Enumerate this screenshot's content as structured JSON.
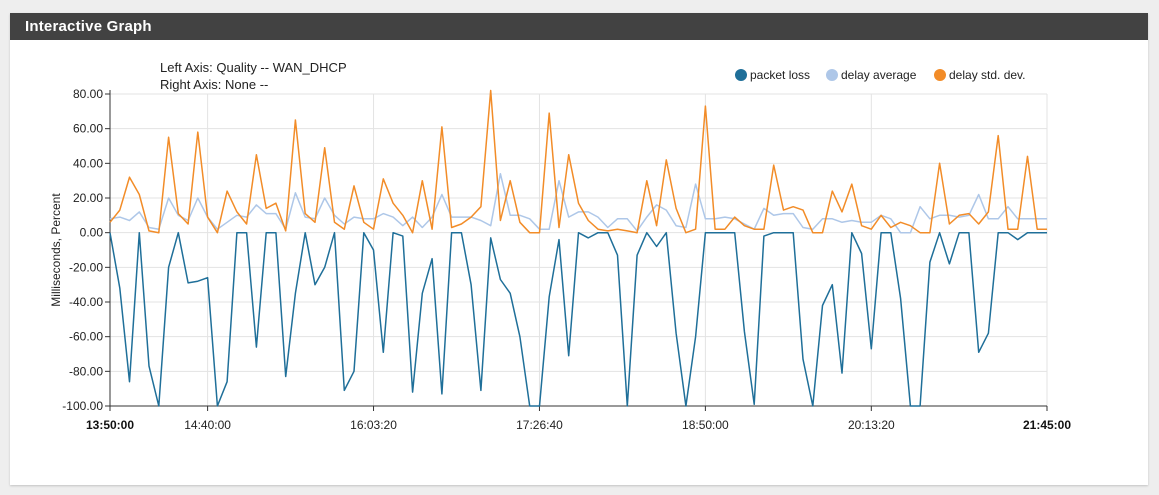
{
  "panel": {
    "title": "Interactive Graph"
  },
  "chart_data": {
    "type": "line",
    "axis_info": [
      "Left Axis: Quality -- WAN_DHCP",
      "Right Axis: None --"
    ],
    "ylabel": "Milliseconds, Percent",
    "xlabel": "",
    "ylim": [
      -100,
      80
    ],
    "grid": true,
    "legend_position": "top-right",
    "x_tick_labels": [
      {
        "label": "13:50:00",
        "bold": true,
        "index": 0
      },
      {
        "label": "14:40:00",
        "bold": false,
        "index": 10
      },
      {
        "label": "16:03:20",
        "bold": false,
        "index": 27
      },
      {
        "label": "17:26:40",
        "bold": false,
        "index": 44
      },
      {
        "label": "18:50:00",
        "bold": false,
        "index": 61
      },
      {
        "label": "20:13:20",
        "bold": false,
        "index": 78
      },
      {
        "label": "21:45:00",
        "bold": true,
        "index": 96
      }
    ],
    "y_tick_labels": [
      "80.00",
      "60.00",
      "40.00",
      "20.00",
      "0.00",
      "-20.00",
      "-40.00",
      "-60.00",
      "-80.00",
      "-100.00"
    ],
    "y_tick_values": [
      80,
      60,
      40,
      20,
      0,
      -20,
      -40,
      -60,
      -80,
      -100
    ],
    "x_count": 97,
    "series": [
      {
        "name": "packet loss",
        "color": "#1f6f99",
        "values": [
          0,
          -32,
          -86,
          0,
          -77,
          -100,
          -20,
          0,
          -29,
          -28,
          -26,
          -100,
          -86,
          0,
          0,
          -66,
          0,
          0,
          -83,
          -35,
          0,
          -30,
          -20,
          0,
          -91,
          -80,
          0,
          -10,
          -69,
          0,
          -2,
          -92,
          -35,
          -15,
          -93,
          0,
          0,
          -30,
          -91,
          -3,
          -27,
          -35,
          -60,
          -100,
          -100,
          -37,
          -4,
          -71,
          0,
          -3,
          0,
          0,
          -13,
          -100,
          -13,
          0,
          -8,
          0,
          -58,
          -100,
          -60,
          0,
          0,
          0,
          0,
          -57,
          -99,
          -2,
          0,
          0,
          0,
          -73,
          -100,
          -42,
          -30,
          -81,
          0,
          -12,
          -67,
          0,
          0,
          -38,
          -100,
          -100,
          -17,
          0,
          -18,
          0,
          0,
          -69,
          -58,
          0,
          0,
          -4,
          0,
          0,
          0
        ]
      },
      {
        "name": "delay average",
        "color": "#aec7e8",
        "values": [
          8,
          9,
          7,
          12,
          3,
          2,
          20,
          10,
          7,
          20,
          9,
          2,
          6,
          10,
          9,
          16,
          11,
          11,
          2,
          23,
          9,
          8,
          20,
          10,
          5,
          9,
          8,
          8,
          11,
          9,
          4,
          9,
          3,
          9,
          22,
          9,
          9,
          9,
          7,
          4,
          34,
          10,
          10,
          8,
          2,
          2,
          30,
          9,
          12,
          12,
          9,
          3,
          8,
          8,
          1,
          9,
          16,
          13,
          4,
          3,
          28,
          8,
          8,
          9,
          8,
          5,
          2,
          14,
          10,
          11,
          11,
          3,
          2,
          8,
          8,
          6,
          7,
          6,
          6,
          10,
          8,
          0,
          0,
          15,
          8,
          10,
          10,
          9,
          10,
          22,
          8,
          8,
          15,
          8,
          8,
          8,
          8
        ]
      },
      {
        "name": "delay std. dev.",
        "color": "#f28c28",
        "values": [
          6,
          13,
          32,
          22,
          1,
          0,
          55,
          11,
          5,
          58,
          9,
          0,
          24,
          12,
          5,
          45,
          14,
          17,
          1,
          65,
          11,
          6,
          49,
          6,
          2,
          27,
          6,
          2,
          31,
          17,
          10,
          0,
          30,
          2,
          61,
          3,
          5,
          9,
          15,
          82,
          7,
          30,
          6,
          0,
          0,
          69,
          3,
          45,
          17,
          7,
          2,
          1,
          2,
          1,
          0,
          30,
          4,
          42,
          14,
          0,
          2,
          73,
          2,
          2,
          9,
          4,
          2,
          2,
          39,
          13,
          15,
          13,
          0,
          0,
          24,
          12,
          28,
          4,
          2,
          10,
          3,
          6,
          4,
          0,
          0,
          40,
          5,
          10,
          11,
          5,
          12,
          56,
          2,
          2,
          44,
          2,
          2
        ]
      }
    ]
  }
}
